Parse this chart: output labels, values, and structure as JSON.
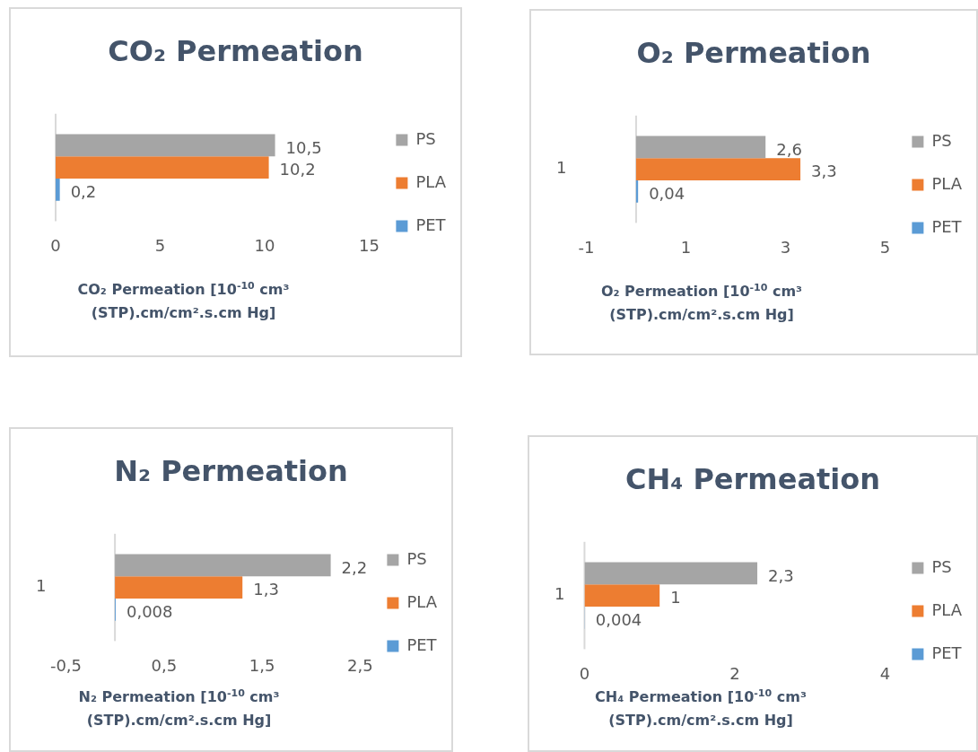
{
  "chart_data": [
    {
      "type": "bar",
      "orientation": "horizontal",
      "title": "CO₂ Permeation",
      "xlabel": "CO₂ Permeation [10$^{-10}$ cm³ (STP).cm/cm².s.cm Hg]",
      "categories": [
        null
      ],
      "xlim": [
        0,
        15
      ],
      "xticks": [
        0,
        5,
        10,
        15
      ],
      "legend": "right",
      "series": [
        {
          "name": "PS",
          "color": "#a5a5a5",
          "values": [
            10.5
          ],
          "value_labels": [
            "10,5"
          ]
        },
        {
          "name": "PLA",
          "color": "#ed7d31",
          "values": [
            10.2
          ],
          "value_labels": [
            "10,2"
          ]
        },
        {
          "name": "PET",
          "color": "#5b9bd5",
          "values": [
            0.2
          ],
          "value_labels": [
            "0,2"
          ]
        }
      ]
    },
    {
      "type": "bar",
      "orientation": "horizontal",
      "title": "O₂ Permeation",
      "xlabel": "O₂ Permeation [10$^{-10}$ cm³ (STP).cm/cm².s.cm Hg]",
      "categories": [
        "1"
      ],
      "xlim": [
        -1,
        5
      ],
      "xticks": [
        -1,
        1,
        3,
        5
      ],
      "legend": "right",
      "series": [
        {
          "name": "PS",
          "color": "#a5a5a5",
          "values": [
            2.6
          ],
          "value_labels": [
            "2,6"
          ]
        },
        {
          "name": "PLA",
          "color": "#ed7d31",
          "values": [
            3.3
          ],
          "value_labels": [
            "3,3"
          ]
        },
        {
          "name": "PET",
          "color": "#5b9bd5",
          "values": [
            0.04
          ],
          "value_labels": [
            "0,04"
          ]
        }
      ]
    },
    {
      "type": "bar",
      "orientation": "horizontal",
      "title": "N₂ Permeation",
      "xlabel": "N₂ Permeation [10$^{-10}$ cm³ (STP).cm/cm².s.cm Hg]",
      "categories": [
        "1"
      ],
      "xlim": [
        -0.5,
        2.5
      ],
      "xticks": [
        {
          "value": -0.5,
          "label": "-0,5"
        },
        {
          "value": 0.5,
          "label": "0,5"
        },
        {
          "value": 1.5,
          "label": "1,5"
        },
        {
          "value": 2.5,
          "label": "2,5"
        }
      ],
      "legend": "right",
      "series": [
        {
          "name": "PS",
          "color": "#a5a5a5",
          "values": [
            2.2
          ],
          "value_labels": [
            "2,2"
          ]
        },
        {
          "name": "PLA",
          "color": "#ed7d31",
          "values": [
            1.3
          ],
          "value_labels": [
            "1,3"
          ]
        },
        {
          "name": "PET",
          "color": "#5b9bd5",
          "values": [
            0.008
          ],
          "value_labels": [
            "0,008"
          ]
        }
      ]
    },
    {
      "type": "bar",
      "orientation": "horizontal",
      "title": "CH₄ Permeation",
      "xlabel": "CH₄ Permeation [10$^{-10}$ cm³ (STP).cm/cm².s.cm Hg]",
      "categories": [
        "1"
      ],
      "xlim": [
        0,
        4
      ],
      "xticks": [
        0,
        2,
        4
      ],
      "legend": "right",
      "series": [
        {
          "name": "PS",
          "color": "#a5a5a5",
          "values": [
            2.3
          ],
          "value_labels": [
            "2,3"
          ]
        },
        {
          "name": "PLA",
          "color": "#ed7d31",
          "values": [
            1
          ],
          "value_labels": [
            "1"
          ]
        },
        {
          "name": "PET",
          "color": "#5b9bd5",
          "values": [
            0.004
          ],
          "value_labels": [
            "0,004"
          ]
        }
      ]
    }
  ]
}
